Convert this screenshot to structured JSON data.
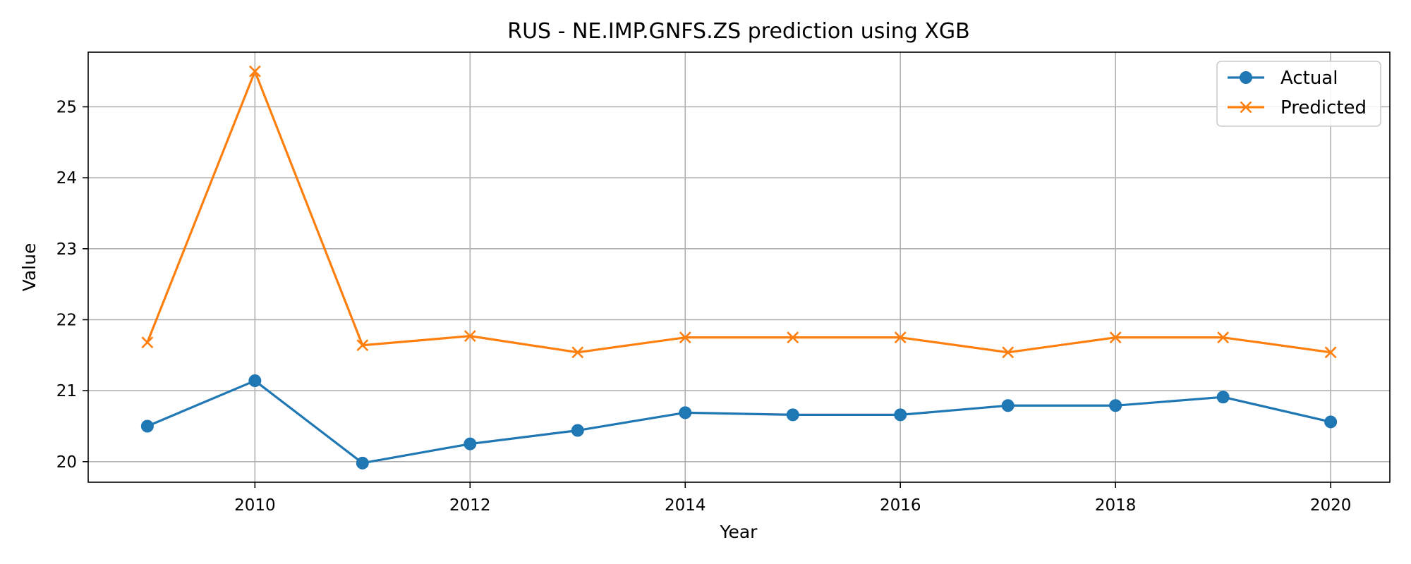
{
  "chart_data": {
    "type": "line",
    "title": "RUS - NE.IMP.GNFS.ZS prediction using XGB",
    "xlabel": "Year",
    "ylabel": "Value",
    "x": [
      2009,
      2010,
      2011,
      2012,
      2013,
      2014,
      2015,
      2016,
      2017,
      2018,
      2019,
      2020
    ],
    "xticks": [
      2010,
      2012,
      2014,
      2016,
      2018,
      2020
    ],
    "yticks": [
      20,
      21,
      22,
      23,
      24,
      25
    ],
    "xlim": [
      2008.45,
      2020.55
    ],
    "ylim": [
      19.71,
      25.77
    ],
    "grid": true,
    "legend_position": "top-right",
    "series": [
      {
        "name": "Actual",
        "marker": "circle",
        "color": "#1f77b4",
        "values": [
          20.5,
          21.14,
          19.98,
          20.25,
          20.44,
          20.69,
          20.66,
          20.66,
          20.79,
          20.79,
          20.91,
          20.56
        ]
      },
      {
        "name": "Predicted",
        "marker": "x",
        "color": "#ff7f0e",
        "values": [
          21.68,
          25.5,
          21.64,
          21.77,
          21.54,
          21.75,
          21.75,
          21.75,
          21.54,
          21.75,
          21.75,
          21.54
        ]
      }
    ]
  }
}
